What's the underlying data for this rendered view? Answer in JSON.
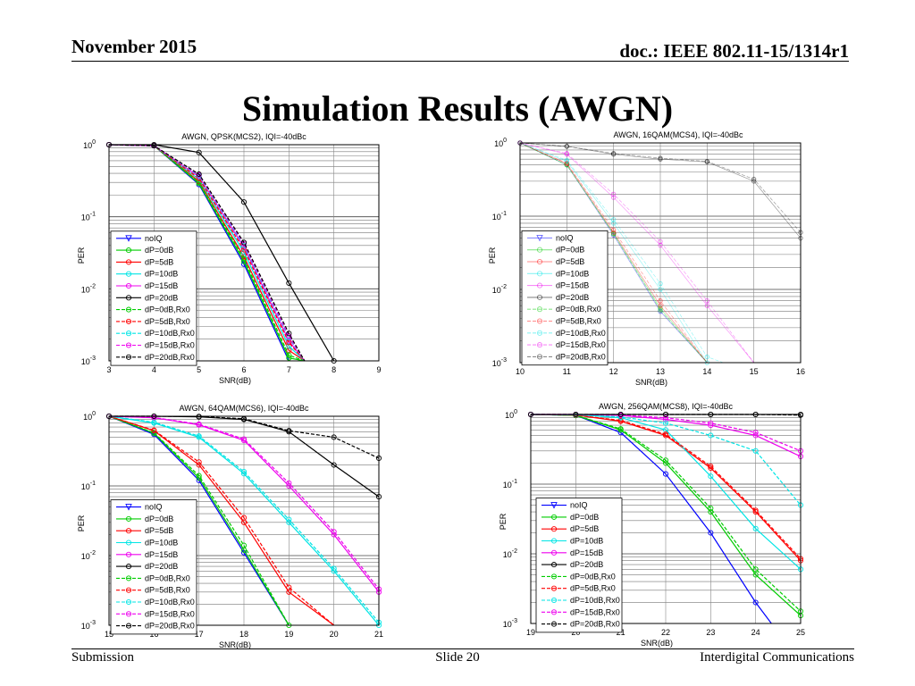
{
  "header": {
    "date": "November 2015",
    "doc": "doc.: IEEE 802.11-15/1314r1"
  },
  "title": "Simulation Results (AWGN)",
  "footer": {
    "left": "Submission",
    "center": "Slide 20",
    "right": "Interdigital Communications"
  },
  "series_names": [
    "noIQ",
    "dP=0dB",
    "dP=5dB",
    "dP=10dB",
    "dP=15dB",
    "dP=20dB",
    "dP=0dB,Rx0",
    "dP=5dB,Rx0",
    "dP=10dB,Rx0",
    "dP=15dB,Rx0",
    "dP=20dB,Rx0"
  ],
  "series_colors": [
    "#0000ff",
    "#00cc00",
    "#ff0000",
    "#00e5e5",
    "#ee00ee",
    "#000000",
    "#00cc00",
    "#ff0000",
    "#00e5e5",
    "#ee00ee",
    "#000000"
  ],
  "chart_data": [
    {
      "type": "line",
      "title": "AWGN, QPSK(MCS2), IQI=-40dBc",
      "xlabel": "SNR(dB)",
      "ylabel": "PER",
      "xlim": [
        3,
        9
      ],
      "xticks": [
        3,
        4,
        5,
        6,
        7,
        8,
        9
      ],
      "ylim": [
        0.001,
        1
      ],
      "yscale": "log",
      "yticks": [
        "10^0",
        "10^-1",
        "10^-2",
        "10^-3"
      ],
      "grid": true,
      "legend": "left",
      "x": [
        3,
        4,
        5,
        6,
        7,
        8
      ],
      "series": [
        {
          "name": "noIQ",
          "values": [
            1,
            0.97,
            0.28,
            0.022,
            0.0009,
            null
          ]
        },
        {
          "name": "dP=0dB",
          "values": [
            1,
            0.97,
            0.29,
            0.024,
            0.0011,
            null
          ]
        },
        {
          "name": "dP=5dB",
          "values": [
            1,
            0.97,
            0.31,
            0.028,
            0.0014,
            null
          ]
        },
        {
          "name": "dP=10dB",
          "values": [
            1,
            0.97,
            0.33,
            0.032,
            0.0016,
            null
          ]
        },
        {
          "name": "dP=15dB",
          "values": [
            1,
            0.97,
            0.36,
            0.038,
            0.0019,
            null
          ]
        },
        {
          "name": "dP=20dB",
          "values": [
            1,
            1,
            0.78,
            0.16,
            0.012,
            0.001
          ]
        },
        {
          "name": "dP=0dB,Rx0",
          "values": [
            1,
            0.97,
            0.3,
            0.026,
            0.0012,
            null
          ]
        },
        {
          "name": "dP=5dB,Rx0",
          "values": [
            1,
            0.97,
            0.34,
            0.035,
            0.0018,
            null
          ]
        },
        {
          "name": "dP=10dB,Rx0",
          "values": [
            1,
            0.97,
            0.37,
            0.04,
            0.0021,
            null
          ]
        },
        {
          "name": "dP=15dB,Rx0",
          "values": [
            1,
            0.97,
            0.38,
            0.042,
            0.0022,
            null
          ]
        },
        {
          "name": "dP=20dB,Rx0",
          "values": [
            1,
            0.97,
            0.39,
            0.044,
            0.0024,
            null
          ]
        }
      ]
    },
    {
      "type": "line",
      "title": "AWGN, 16QAM(MCS4), IQI=-40dBc",
      "xlabel": "SNR(dB)",
      "ylabel": "PER",
      "xlim": [
        10,
        16
      ],
      "xticks": [
        10,
        11,
        12,
        13,
        14,
        15,
        16
      ],
      "ylim": [
        0.001,
        1
      ],
      "yscale": "log",
      "yticks": [
        "10^0",
        "10^-1",
        "10^-2",
        "10^-3"
      ],
      "grid": true,
      "legend": "left",
      "x": [
        10,
        11,
        12,
        13,
        14,
        15,
        16
      ],
      "series": [
        {
          "name": "noIQ",
          "values": [
            1,
            0.5,
            0.055,
            0.005,
            0.0005,
            null,
            null
          ]
        },
        {
          "name": "dP=0dB",
          "values": [
            1,
            0.5,
            0.058,
            0.0055,
            0.0005,
            null,
            null
          ]
        },
        {
          "name": "dP=5dB",
          "values": [
            1,
            0.52,
            0.06,
            0.006,
            0.0006,
            null,
            null
          ]
        },
        {
          "name": "dP=10dB",
          "values": [
            1,
            0.56,
            0.08,
            0.01,
            0.001,
            null,
            null
          ]
        },
        {
          "name": "dP=15dB",
          "values": [
            1,
            0.7,
            0.18,
            0.04,
            0.006,
            0.0008,
            null
          ]
        },
        {
          "name": "dP=20dB",
          "values": [
            1,
            0.9,
            0.7,
            0.6,
            0.55,
            0.3,
            0.05
          ]
        },
        {
          "name": "dP=0dB,Rx0",
          "values": [
            1,
            0.5,
            0.057,
            0.0052,
            0.0005,
            null,
            null
          ]
        },
        {
          "name": "dP=5dB,Rx0",
          "values": [
            1,
            0.53,
            0.065,
            0.007,
            0.0007,
            null,
            null
          ]
        },
        {
          "name": "dP=10dB,Rx0",
          "values": [
            1,
            0.58,
            0.09,
            0.012,
            0.0012,
            null,
            null
          ]
        },
        {
          "name": "dP=15dB,Rx0",
          "values": [
            1,
            0.72,
            0.2,
            0.045,
            0.007,
            0.0009,
            null
          ]
        },
        {
          "name": "dP=20dB,Rx0",
          "values": [
            1,
            0.9,
            0.72,
            0.62,
            0.56,
            0.32,
            0.06
          ]
        }
      ]
    },
    {
      "type": "line",
      "title": "AWGN, 64QAM(MCS6), IQI=-40dBc",
      "xlabel": "SNR(dB)",
      "ylabel": "PER",
      "xlim": [
        15,
        21
      ],
      "xticks": [
        15,
        16,
        17,
        18,
        19,
        20,
        21
      ],
      "ylim": [
        0.001,
        1
      ],
      "yscale": "log",
      "yticks": [
        "10^0",
        "10^-1",
        "10^-2",
        "10^-3"
      ],
      "grid": true,
      "legend": "left",
      "x": [
        15,
        16,
        17,
        18,
        19,
        20,
        21
      ],
      "series": [
        {
          "name": "noIQ",
          "values": [
            1,
            0.55,
            0.12,
            0.011,
            0.0008,
            null,
            null
          ]
        },
        {
          "name": "dP=0dB",
          "values": [
            1,
            0.57,
            0.13,
            0.012,
            0.0009,
            null,
            null
          ]
        },
        {
          "name": "dP=5dB",
          "values": [
            1,
            0.62,
            0.2,
            0.03,
            0.003,
            0.0002,
            null
          ]
        },
        {
          "name": "dP=10dB",
          "values": [
            1,
            0.8,
            0.5,
            0.15,
            0.03,
            0.006,
            0.001
          ]
        },
        {
          "name": "dP=15dB",
          "values": [
            1,
            0.95,
            0.75,
            0.45,
            0.1,
            0.02,
            0.003
          ]
        },
        {
          "name": "dP=20dB",
          "values": [
            1,
            1,
            0.98,
            0.9,
            0.6,
            0.2,
            0.07
          ]
        },
        {
          "name": "dP=0dB,Rx0",
          "values": [
            1,
            0.58,
            0.14,
            0.014,
            0.001,
            null,
            null
          ]
        },
        {
          "name": "dP=5dB,Rx0",
          "values": [
            1,
            0.63,
            0.22,
            0.035,
            0.0035,
            0.00025,
            null
          ]
        },
        {
          "name": "dP=10dB,Rx0",
          "values": [
            1,
            0.82,
            0.52,
            0.16,
            0.033,
            0.0065,
            0.0011
          ]
        },
        {
          "name": "dP=15dB,Rx0",
          "values": [
            1,
            0.96,
            0.77,
            0.47,
            0.11,
            0.022,
            0.0033
          ]
        },
        {
          "name": "dP=20dB,Rx0",
          "values": [
            1,
            1,
            0.99,
            0.92,
            0.62,
            0.5,
            0.25
          ]
        }
      ]
    },
    {
      "type": "line",
      "title": "AWGN, 256QAM(MCS8), IQI=-40dBc",
      "xlabel": "SNR(dB)",
      "ylabel": "PER",
      "xlim": [
        19,
        25
      ],
      "xticks": [
        19,
        20,
        21,
        22,
        23,
        24,
        25
      ],
      "ylim": [
        0.001,
        1
      ],
      "yscale": "log",
      "yticks": [
        "10^0",
        "10^-1",
        "10^-2",
        "10^-3"
      ],
      "grid": true,
      "legend": "left",
      "x": [
        19,
        20,
        21,
        22,
        23,
        24,
        25
      ],
      "series": [
        {
          "name": "noIQ",
          "values": [
            1,
            0.97,
            0.55,
            0.14,
            0.02,
            0.002,
            null
          ]
        },
        {
          "name": "dP=0dB",
          "values": [
            1,
            0.97,
            0.6,
            0.2,
            0.04,
            0.005,
            0.0013
          ]
        },
        {
          "name": "dP=5dB",
          "values": [
            1,
            0.98,
            0.8,
            0.5,
            0.17,
            0.04,
            0.008
          ]
        },
        {
          "name": "dP=10dB",
          "values": [
            1,
            0.99,
            0.9,
            0.6,
            0.13,
            0.023,
            0.006
          ]
        },
        {
          "name": "dP=15dB",
          "values": [
            1,
            1,
            0.97,
            0.85,
            0.7,
            0.5,
            0.25
          ]
        },
        {
          "name": "dP=20dB",
          "values": [
            1,
            1,
            1,
            1,
            1,
            1,
            1
          ]
        },
        {
          "name": "dP=0dB,Rx0",
          "values": [
            1,
            0.97,
            0.62,
            0.22,
            0.045,
            0.006,
            0.0015
          ]
        },
        {
          "name": "dP=5dB,Rx0",
          "values": [
            1,
            0.98,
            0.82,
            0.52,
            0.18,
            0.042,
            0.0085
          ]
        },
        {
          "name": "dP=10dB,Rx0",
          "values": [
            1,
            0.99,
            0.92,
            0.75,
            0.5,
            0.3,
            0.05
          ]
        },
        {
          "name": "dP=15dB,Rx0",
          "values": [
            1,
            1,
            0.98,
            0.9,
            0.75,
            0.55,
            0.3
          ]
        },
        {
          "name": "dP=20dB,Rx0",
          "values": [
            1,
            1,
            1,
            1,
            1,
            1,
            0.98
          ]
        }
      ]
    }
  ]
}
